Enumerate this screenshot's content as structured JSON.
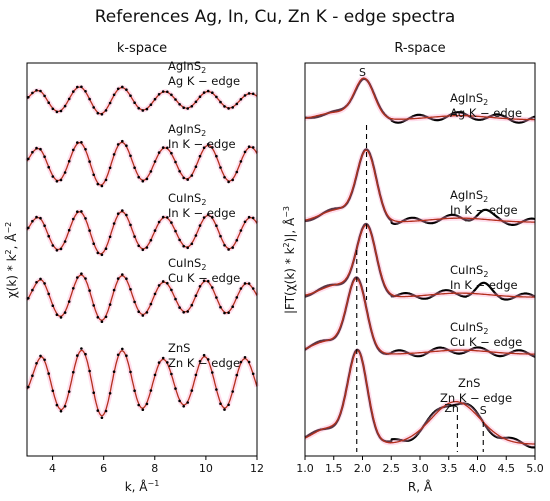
{
  "figure": {
    "title": "References Ag, In, Cu, Zn K - edge spectra"
  },
  "chart_data": [
    {
      "type": "line",
      "panel_title": "k-space",
      "xlabel": "k, Å",
      "xlabel_sup": "−1",
      "ylabel_parts": [
        "χ(k) * k",
        "2",
        ", Å",
        "−2"
      ],
      "xlim": [
        3,
        12
      ],
      "xticks": [
        "4",
        "6",
        "8",
        "10",
        "12"
      ],
      "y_ticks_shown": false,
      "legend": "none",
      "series_styles": [
        "experiment: black dotted",
        "fit: red solid"
      ],
      "spectra": [
        {
          "label": "AgInS",
          "sub": "2",
          "edge": "Ag K − edge",
          "offset": 4,
          "amp": 0.36,
          "freq": 3.74,
          "phase": 0.2,
          "decay": 0.04
        },
        {
          "label": "AgInS",
          "sub": "2",
          "edge": "In K − edge",
          "offset": 3,
          "amp": 0.55,
          "freq": 3.74,
          "phase": 0.2,
          "decay": 0.015
        },
        {
          "label": "CuInS",
          "sub": "2",
          "edge": "In K − edge",
          "offset": 2,
          "amp": 0.55,
          "freq": 3.74,
          "phase": 0.2,
          "decay": 0.02
        },
        {
          "label": "CuInS",
          "sub": "2",
          "edge": "Cu K − edge",
          "offset": 1,
          "amp": 0.6,
          "freq": 3.86,
          "phase": -0.3,
          "decay": 0.03
        },
        {
          "label": "ZnS",
          "sub": "",
          "edge": "Zn K − edge",
          "offset": 0,
          "amp": 0.85,
          "freq": 3.92,
          "phase": -0.5,
          "decay": 0.02
        }
      ]
    },
    {
      "type": "line",
      "panel_title": "R-space",
      "xlabel": "R, Å",
      "ylabel_parts": [
        "|FT(χ(k) * k",
        "2",
        ")|, Å",
        "−3"
      ],
      "xlim": [
        1.0,
        5.0
      ],
      "xticks": [
        "1.0",
        "1.5",
        "2.0",
        "2.5",
        "3.0",
        "3.5",
        "4.0",
        "4.5",
        "5.0"
      ],
      "y_ticks_shown": false,
      "legend": "none",
      "series_styles": [
        "experiment: black solid",
        "fit: red solid"
      ],
      "spectra": [
        {
          "label": "AgInS",
          "sub": "2",
          "edge": "Ag K − edge",
          "offset": 4,
          "peak_r": 2.03,
          "height": 0.58
        },
        {
          "label": "AgInS",
          "sub": "2",
          "edge": "In K − edge",
          "offset": 3,
          "peak_r": 2.07,
          "height": 1.0
        },
        {
          "label": "CuInS",
          "sub": "2",
          "edge": "In K − edge",
          "offset": 2,
          "peak_r": 2.07,
          "height": 1.0
        },
        {
          "label": "CuInS",
          "sub": "2",
          "edge": "Cu K − edge",
          "offset": 1,
          "peak_r": 1.9,
          "height": 1.05
        },
        {
          "label": "ZnS",
          "sub": "",
          "edge": "Zn K − edge",
          "offset": 0,
          "peak_r": 1.92,
          "height": 1.3
        }
      ],
      "annotations": [
        {
          "text": "S",
          "x": 2.0
        },
        {
          "text": "Zn",
          "x": 3.55
        },
        {
          "text": "S",
          "x": 4.1
        }
      ],
      "dashed_lines_x": [
        1.9,
        2.07,
        3.65,
        4.1
      ]
    }
  ]
}
